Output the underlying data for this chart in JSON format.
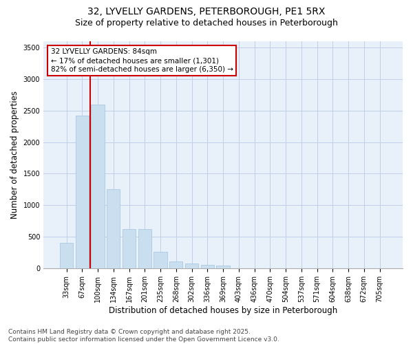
{
  "title1": "32, LYVELLY GARDENS, PETERBOROUGH, PE1 5RX",
  "title2": "Size of property relative to detached houses in Peterborough",
  "xlabel": "Distribution of detached houses by size in Peterborough",
  "ylabel": "Number of detached properties",
  "categories": [
    "33sqm",
    "67sqm",
    "100sqm",
    "134sqm",
    "167sqm",
    "201sqm",
    "235sqm",
    "268sqm",
    "302sqm",
    "336sqm",
    "369sqm",
    "403sqm",
    "436sqm",
    "470sqm",
    "504sqm",
    "537sqm",
    "571sqm",
    "604sqm",
    "638sqm",
    "672sqm",
    "705sqm"
  ],
  "values": [
    400,
    2420,
    2600,
    1250,
    620,
    620,
    260,
    110,
    70,
    50,
    40,
    0,
    0,
    0,
    0,
    0,
    0,
    0,
    0,
    0,
    0
  ],
  "bar_color": "#c9dff0",
  "bar_edge_color": "#a0c4e0",
  "vline_x": 1.5,
  "vline_color": "#cc0000",
  "annotation_text": "32 LYVELLY GARDENS: 84sqm\n← 17% of detached houses are smaller (1,301)\n82% of semi-detached houses are larger (6,350) →",
  "annotation_box_color": "#cc0000",
  "ylim": [
    0,
    3600
  ],
  "yticks": [
    0,
    500,
    1000,
    1500,
    2000,
    2500,
    3000,
    3500
  ],
  "footer1": "Contains HM Land Registry data © Crown copyright and database right 2025.",
  "footer2": "Contains public sector information licensed under the Open Government Licence v3.0.",
  "bg_color": "#e8f0fa",
  "grid_color": "#c0cfe8",
  "title_fontsize": 10,
  "subtitle_fontsize": 9,
  "axis_label_fontsize": 8.5,
  "tick_fontsize": 7,
  "footer_fontsize": 6.5,
  "ann_fontsize": 7.5
}
